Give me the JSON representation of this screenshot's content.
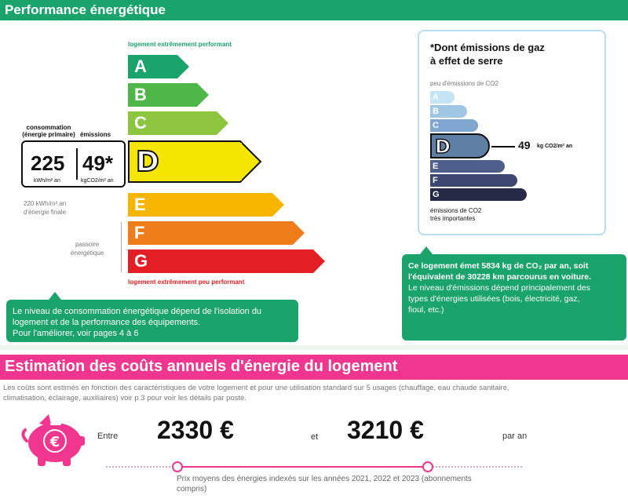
{
  "performance": {
    "header": "Performance énergétique",
    "top_label": "logement extrêmement performant",
    "bottom_label": "logement extrêmement peu performant",
    "consumption_label_line1": "consommation",
    "consumption_label_line2": "(énergie primaire)",
    "emissions_label": "émissions",
    "consumption_value": "225",
    "consumption_unit": "kWh/m² an",
    "emissions_value": "49*",
    "emissions_unit": "kgCO2/m² an",
    "final_energy_line1": "220 kWh/m².an",
    "final_energy_line2": "d'énergie finale",
    "passoire_line1": "passoire",
    "passoire_line2": "énergétique",
    "classes": [
      {
        "letter": "A",
        "color": "#1aa36b"
      },
      {
        "letter": "B",
        "color": "#4db848"
      },
      {
        "letter": "C",
        "color": "#8cc63f"
      },
      {
        "letter": "D",
        "color": "#f4e600"
      },
      {
        "letter": "E",
        "color": "#f7b500"
      },
      {
        "letter": "F",
        "color": "#ef7d1a"
      },
      {
        "letter": "G",
        "color": "#e31e24"
      }
    ],
    "current_class": "D",
    "note_line1": "Le niveau de consommation énergétique dépend de l'isolation du",
    "note_line2": "logement et de la performance des équipements.",
    "note_line3": "Pour l'améliorer, voir pages 4 à 6"
  },
  "ges": {
    "title_line1": "*Dont émissions de gaz",
    "title_line2": "à effet de serre",
    "top_label": "peu d'émissions de CO2",
    "bottom_label_line1": "émissions de CO2",
    "bottom_label_line2": "très importantes",
    "value": "49",
    "unit": "kg CO2/m² an",
    "classes": [
      {
        "letter": "A",
        "color": "#c4e4f4"
      },
      {
        "letter": "B",
        "color": "#9fc6e2"
      },
      {
        "letter": "C",
        "color": "#7fa7cf"
      },
      {
        "letter": "D",
        "color": "#5f7fa5"
      },
      {
        "letter": "E",
        "color": "#4f5f8c"
      },
      {
        "letter": "F",
        "color": "#3c4670"
      },
      {
        "letter": "G",
        "color": "#262a46"
      }
    ],
    "current_class": "D",
    "note_bold_line1": "Ce logement émet 5834 kg de CO₂ par an, soit",
    "note_bold_line2": "l'équivalent de 30228  km parcourus en voiture.",
    "note_line3": "Le niveau d'émissions dépend principalement des",
    "note_line4": "types d'énergies utilisées (bois, électricité, gaz,",
    "note_line5": "fioul, etc.)"
  },
  "costs": {
    "header": "Estimation des coûts annuels d'énergie du logement",
    "intro_line1": "Les coûts sont estimés en fonction des caractéristiques de votre logement et pour une utilisation standard sur 5 usages (chauffage, eau chaude sanitaire,",
    "intro_line2": "climatisation, éclairage, auxiliaires) voir p.3 pour voir les détails par poste.",
    "between_label": "Entre",
    "low_value": "2330 €",
    "and_label": "et",
    "high_value": "3210 €",
    "per_year_label": "par an",
    "footnote_line1": "Prix moyens des énergies indexés sur les années 2021, 2022 et 2023 (abonnements",
    "footnote_line2": "compris)",
    "euro_symbol": "€",
    "accent_color": "#f0368f"
  }
}
